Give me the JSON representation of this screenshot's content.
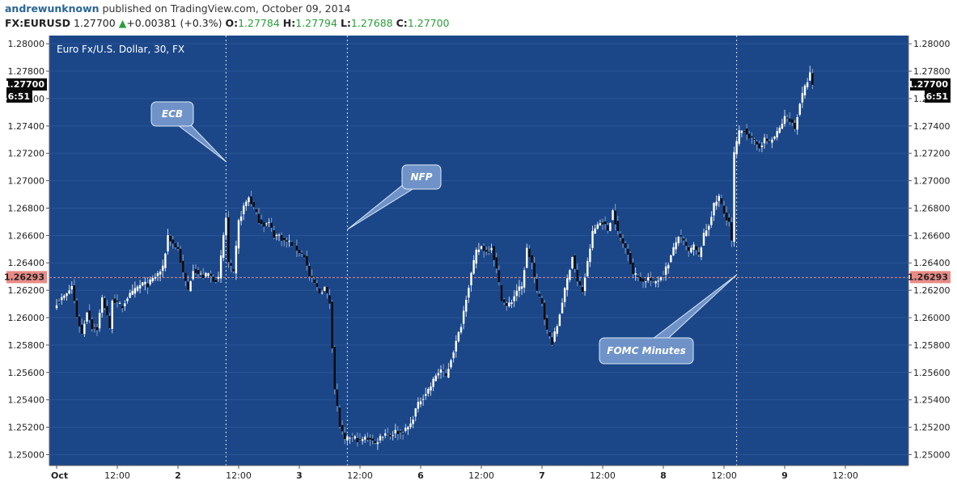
{
  "header": {
    "author": "andrewunknown",
    "published_text": "published on TradingView.com, October 09, 2014",
    "symbol": "FX:EURUSD",
    "last": "1.27700",
    "change": "+0.00381 (+0.3%)",
    "open_label": "O:",
    "open": "1.27784",
    "high_label": "H:",
    "high": "1.27794",
    "low_label": "L:",
    "low": "1.27688",
    "close_label": "C:",
    "close": "1.27700"
  },
  "colors": {
    "chart_bg": "#1b4789",
    "up_candle": "#ffffff",
    "down_candle": "#0a0a0a",
    "change_up": "#2a9d3a",
    "price_line": "#e88b86",
    "callout": "#6f93c8"
  },
  "chart_data": {
    "type": "candlestick",
    "title": "Euro Fx/U.S. Dollar, 30, FX",
    "ylim": [
      1.2492,
      1.2806
    ],
    "y_ticks": [
      "1.28000",
      "1.27800",
      "1.27600",
      "1.27400",
      "1.27200",
      "1.27000",
      "1.26800",
      "1.26600",
      "1.26400",
      "1.26200",
      "1.26000",
      "1.25800",
      "1.25600",
      "1.25400",
      "1.25200",
      "1.25000"
    ],
    "x_ticks": [
      {
        "label": "Oct",
        "i": 0
      },
      {
        "label": "12:00",
        "i": 24
      },
      {
        "label": "2",
        "i": 48
      },
      {
        "label": "12:00",
        "i": 72
      },
      {
        "label": "3",
        "i": 96
      },
      {
        "label": "12:00",
        "i": 120
      },
      {
        "label": "6",
        "i": 144
      },
      {
        "label": "12:00",
        "i": 168
      },
      {
        "label": "7",
        "i": 192
      },
      {
        "label": "12:00",
        "i": 216
      },
      {
        "label": "8",
        "i": 240
      },
      {
        "label": "12:00",
        "i": 264
      },
      {
        "label": "9",
        "i": 288
      },
      {
        "label": "12:00",
        "i": 312
      }
    ],
    "last_price": {
      "price": 1.277,
      "value_label": "1.27700",
      "countdown_label": "16:51"
    },
    "ref_price": {
      "price": 1.26293,
      "label": "1.26293"
    },
    "events": [
      {
        "name": "ECB",
        "i": 67
      },
      {
        "name": "NFP",
        "i": 115
      },
      {
        "name": "FOMC Minutes",
        "i": 269
      }
    ],
    "anchors": [
      [
        0,
        1.2611
      ],
      [
        4,
        1.2617
      ],
      [
        6,
        1.2623
      ],
      [
        8,
        1.2601
      ],
      [
        10,
        1.2588
      ],
      [
        12,
        1.2605
      ],
      [
        14,
        1.2593
      ],
      [
        16,
        1.2592
      ],
      [
        18,
        1.2614
      ],
      [
        20,
        1.2602
      ],
      [
        21,
        1.2591
      ],
      [
        22,
        1.2614
      ],
      [
        24,
        1.261
      ],
      [
        26,
        1.2608
      ],
      [
        28,
        1.2615
      ],
      [
        30,
        1.2618
      ],
      [
        32,
        1.2622
      ],
      [
        34,
        1.2625
      ],
      [
        36,
        1.2624
      ],
      [
        38,
        1.2628
      ],
      [
        40,
        1.2632
      ],
      [
        42,
        1.2636
      ],
      [
        44,
        1.266
      ],
      [
        46,
        1.2654
      ],
      [
        48,
        1.265
      ],
      [
        50,
        1.2632
      ],
      [
        52,
        1.262
      ],
      [
        54,
        1.2636
      ],
      [
        56,
        1.2632
      ],
      [
        58,
        1.263
      ],
      [
        60,
        1.2632
      ],
      [
        62,
        1.2628
      ],
      [
        64,
        1.2628
      ],
      [
        66,
        1.266
      ],
      [
        67,
        1.2673
      ],
      [
        68,
        1.264
      ],
      [
        70,
        1.2632
      ],
      [
        72,
        1.267
      ],
      [
        74,
        1.2681
      ],
      [
        76,
        1.2688
      ],
      [
        78,
        1.268
      ],
      [
        80,
        1.2671
      ],
      [
        82,
        1.2668
      ],
      [
        84,
        1.2669
      ],
      [
        86,
        1.266
      ],
      [
        88,
        1.266
      ],
      [
        90,
        1.2656
      ],
      [
        92,
        1.2655
      ],
      [
        94,
        1.2652
      ],
      [
        96,
        1.2648
      ],
      [
        98,
        1.2645
      ],
      [
        100,
        1.263
      ],
      [
        102,
        1.2625
      ],
      [
        104,
        1.2618
      ],
      [
        106,
        1.2622
      ],
      [
        108,
        1.2611
      ],
      [
        110,
        1.2548
      ],
      [
        112,
        1.2521
      ],
      [
        114,
        1.251
      ],
      [
        116,
        1.2513
      ],
      [
        118,
        1.2512
      ],
      [
        120,
        1.251
      ],
      [
        122,
        1.2512
      ],
      [
        124,
        1.2512
      ],
      [
        126,
        1.2508
      ],
      [
        128,
        1.2513
      ],
      [
        130,
        1.2516
      ],
      [
        132,
        1.2514
      ],
      [
        134,
        1.2517
      ],
      [
        136,
        1.2516
      ],
      [
        138,
        1.2518
      ],
      [
        140,
        1.2522
      ],
      [
        142,
        1.2533
      ],
      [
        144,
        1.254
      ],
      [
        146,
        1.2545
      ],
      [
        148,
        1.255
      ],
      [
        150,
        1.2558
      ],
      [
        152,
        1.2562
      ],
      [
        154,
        1.2557
      ],
      [
        156,
        1.257
      ],
      [
        158,
        1.2582
      ],
      [
        160,
        1.2595
      ],
      [
        162,
        1.2615
      ],
      [
        164,
        1.2632
      ],
      [
        166,
        1.2648
      ],
      [
        168,
        1.2652
      ],
      [
        170,
        1.2648
      ],
      [
        172,
        1.2652
      ],
      [
        174,
        1.2635
      ],
      [
        176,
        1.2614
      ],
      [
        178,
        1.2608
      ],
      [
        180,
        1.2612
      ],
      [
        182,
        1.262
      ],
      [
        184,
        1.2622
      ],
      [
        186,
        1.265
      ],
      [
        188,
        1.264
      ],
      [
        190,
        1.2618
      ],
      [
        192,
        1.2611
      ],
      [
        194,
        1.259
      ],
      [
        196,
        1.2582
      ],
      [
        198,
        1.2594
      ],
      [
        200,
        1.2612
      ],
      [
        202,
        1.2628
      ],
      [
        204,
        1.2645
      ],
      [
        206,
        1.2626
      ],
      [
        208,
        1.2619
      ],
      [
        210,
        1.264
      ],
      [
        212,
        1.2662
      ],
      [
        214,
        1.2668
      ],
      [
        216,
        1.267
      ],
      [
        218,
        1.2664
      ],
      [
        220,
        1.2678
      ],
      [
        222,
        1.2662
      ],
      [
        224,
        1.2654
      ],
      [
        226,
        1.2648
      ],
      [
        228,
        1.2632
      ],
      [
        230,
        1.263
      ],
      [
        232,
        1.2626
      ],
      [
        234,
        1.2629
      ],
      [
        236,
        1.2625
      ],
      [
        238,
        1.2628
      ],
      [
        240,
        1.2632
      ],
      [
        242,
        1.264
      ],
      [
        244,
        1.265
      ],
      [
        246,
        1.266
      ],
      [
        248,
        1.2655
      ],
      [
        250,
        1.2648
      ],
      [
        252,
        1.2652
      ],
      [
        254,
        1.2645
      ],
      [
        256,
        1.266
      ],
      [
        258,
        1.2668
      ],
      [
        260,
        1.2682
      ],
      [
        262,
        1.2688
      ],
      [
        264,
        1.2676
      ],
      [
        266,
        1.267
      ],
      [
        267,
        1.2655
      ],
      [
        268,
        1.272
      ],
      [
        270,
        1.2735
      ],
      [
        272,
        1.2738
      ],
      [
        274,
        1.2732
      ],
      [
        276,
        1.2728
      ],
      [
        278,
        1.2725
      ],
      [
        280,
        1.273
      ],
      [
        282,
        1.2728
      ],
      [
        284,
        1.2732
      ],
      [
        286,
        1.2738
      ],
      [
        288,
        1.2746
      ],
      [
        290,
        1.2745
      ],
      [
        292,
        1.2738
      ],
      [
        294,
        1.2757
      ],
      [
        296,
        1.2768
      ],
      [
        298,
        1.2778
      ],
      [
        299,
        1.277
      ]
    ]
  }
}
